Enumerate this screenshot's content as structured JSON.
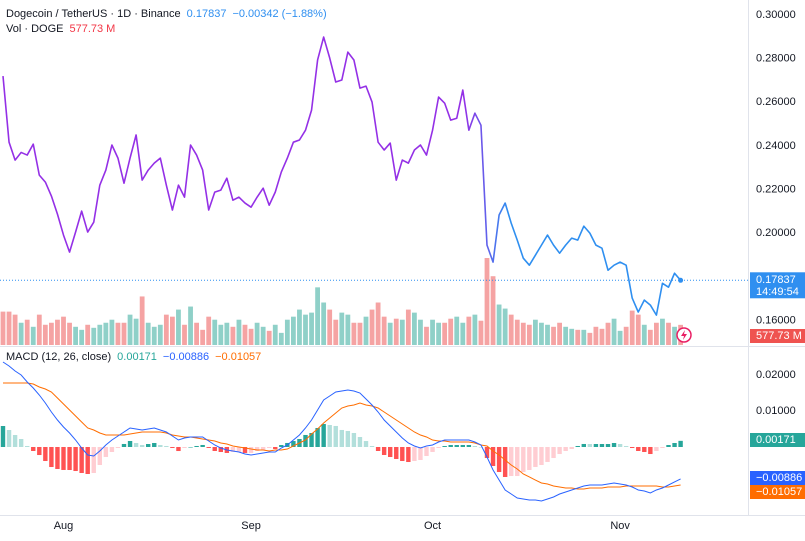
{
  "chart_data": [
    {
      "type": "line",
      "title": "Dogecoin / TetherUS · 1D · Binance",
      "change": "−0.00342 (−1.88%)",
      "countdown": "14:49:54",
      "color": [
        "#9430e6",
        "#2f8ff0"
      ],
      "grid": false,
      "ylim": [
        0.1487,
        0.3069
      ],
      "yticks": [
        {
          "value": 0.3,
          "label": "0.30000"
        },
        {
          "value": 0.28,
          "label": "0.28000"
        },
        {
          "value": 0.26,
          "label": "0.26000"
        },
        {
          "value": 0.24,
          "label": "0.24000"
        },
        {
          "value": 0.22,
          "label": "0.22000"
        },
        {
          "value": 0.2,
          "label": "0.20000"
        },
        {
          "value": 0.16,
          "label": "0.16000"
        }
      ],
      "categories": [
        null,
        null,
        null,
        null,
        null,
        null,
        null,
        null,
        null,
        null,
        "Aug",
        null,
        null,
        null,
        null,
        null,
        null,
        null,
        null,
        null,
        null,
        null,
        null,
        null,
        null,
        null,
        null,
        null,
        null,
        null,
        null,
        null,
        null,
        null,
        null,
        null,
        null,
        null,
        null,
        null,
        null,
        "Sep",
        null,
        null,
        null,
        null,
        null,
        null,
        null,
        null,
        null,
        null,
        null,
        null,
        null,
        null,
        null,
        null,
        null,
        null,
        null,
        null,
        null,
        null,
        null,
        null,
        null,
        null,
        null,
        null,
        null,
        "Oct",
        null,
        null,
        null,
        null,
        null,
        null,
        null,
        null,
        null,
        null,
        null,
        null,
        null,
        null,
        null,
        null,
        null,
        null,
        null,
        null,
        null,
        null,
        null,
        null,
        null,
        null,
        null,
        null,
        null,
        null,
        "Nov",
        null,
        null,
        null,
        null,
        null,
        null,
        null,
        null,
        null,
        null
      ],
      "values": [
        0.272,
        0.2417,
        0.2335,
        0.237,
        0.2358,
        0.2408,
        0.2266,
        0.2234,
        0.217,
        0.2087,
        0.1991,
        0.1913,
        0.2005,
        0.2101,
        0.2005,
        0.205,
        0.222,
        0.2289,
        0.2404,
        0.2344,
        0.2229,
        0.2344,
        0.245,
        0.2243,
        0.2289,
        0.2321,
        0.2344,
        0.222,
        0.2106,
        0.222,
        0.2165,
        0.2404,
        0.2358,
        0.2289,
        0.2106,
        0.2188,
        0.2197,
        0.2252,
        0.2151,
        0.2165,
        0.2138,
        0.2119,
        0.2165,
        0.2206,
        0.2128,
        0.2188,
        0.228,
        0.2344,
        0.2417,
        0.2427,
        0.2472,
        0.2564,
        0.2794,
        0.2899,
        0.2803,
        0.2693,
        0.2702,
        0.283,
        0.2794,
        0.2665,
        0.2674,
        0.2601,
        0.2417,
        0.2381,
        0.2413,
        0.2243,
        0.2335,
        0.2321,
        0.2381,
        0.2404,
        0.2358,
        0.2472,
        0.2624,
        0.2596,
        0.2518,
        0.2527,
        0.2656,
        0.2472,
        0.255,
        0.2495,
        0.1945,
        0.1867,
        0.2083,
        0.2138,
        0.2046,
        0.1968,
        0.1885,
        0.1853,
        0.1899,
        0.1945,
        0.1991,
        0.1945,
        0.1908,
        0.1945,
        0.1977,
        0.1968,
        0.2032,
        0.2,
        0.1945,
        0.1931,
        0.183,
        0.1853,
        0.1867,
        0.1853,
        0.1702,
        0.1638,
        0.1693,
        0.167,
        0.1624,
        0.177,
        0.1752,
        0.1816,
        0.17837
      ]
    },
    {
      "type": "bar",
      "title": "Vol · DOGE",
      "last_label": "577.73 M",
      "up_color": "#8fd0c8",
      "down_color": "#f5a3a3",
      "values": [
        957,
        957,
        870,
        638,
        725,
        522,
        870,
        580,
        638,
        725,
        812,
        638,
        522,
        435,
        580,
        493,
        580,
        638,
        725,
        638,
        638,
        870,
        754,
        1392,
        638,
        522,
        580,
        870,
        812,
        1015,
        580,
        1102,
        638,
        435,
        812,
        725,
        580,
        638,
        522,
        725,
        580,
        464,
        638,
        522,
        406,
        580,
        348,
        725,
        812,
        1015,
        870,
        928,
        1653,
        1218,
        1015,
        725,
        928,
        870,
        638,
        638,
        812,
        1015,
        1218,
        812,
        638,
        754,
        725,
        1015,
        928,
        725,
        522,
        725,
        638,
        638,
        754,
        812,
        638,
        812,
        870,
        696,
        2494,
        1972,
        1160,
        1044,
        870,
        725,
        638,
        580,
        725,
        638,
        580,
        522,
        638,
        522,
        464,
        435,
        435,
        348,
        522,
        464,
        638,
        754,
        406,
        522,
        986,
        870,
        580,
        435,
        638,
        754,
        638,
        522,
        577.73
      ]
    },
    {
      "type": "macd",
      "title": "MACD (12, 26, close)",
      "macd_label": "−0.00886",
      "signal_label": "−0.01057",
      "macd_color": "#2962ff",
      "signal_color": "#ff6d00",
      "hist_colors": {
        "up_strong": "#26a69a",
        "up_weak": "#b2dfdb",
        "down_strong": "#ff5252",
        "down_weak": "#ffcdd2"
      },
      "ylim": [
        -0.01889,
        0.0275
      ],
      "yticks": [
        {
          "value": 0.02,
          "label": "0.02000"
        },
        {
          "value": 0.01,
          "label": "0.01000"
        }
      ],
      "histogram": [
        0.00583,
        0.00472,
        0.00333,
        0.00222,
        0.00028,
        -0.00111,
        -0.00223,
        -0.00389,
        -0.00556,
        -0.00611,
        -0.00638,
        -0.00639,
        -0.00667,
        -0.00722,
        -0.0075,
        -0.00722,
        -0.005,
        -0.00277,
        -0.00139,
        -0.00027,
        0.00084,
        0.00167,
        0.00111,
        0.00055,
        0.00083,
        0.00111,
        0.00055,
        0.00028,
        -0.00027,
        -0.00112,
        -0.00028,
        0,
        0.00028,
        0.00056,
        -0.00027,
        -0.00111,
        -0.00139,
        -0.00166,
        -0.00139,
        -0.00139,
        -0.00166,
        -0.00166,
        -0.00111,
        -0.00084,
        -0.00028,
        -0.00056,
        0.00055,
        0.00112,
        0.00166,
        0.00222,
        0.00334,
        0.00389,
        0.00528,
        0.00639,
        0.00611,
        0.00584,
        0.00473,
        0.00444,
        0.00389,
        0.00278,
        0.00166,
        0.00028,
        -0.00111,
        -0.00222,
        -0.00278,
        -0.00333,
        -0.00389,
        -0.00417,
        -0.00389,
        -0.00361,
        -0.0025,
        -0.00138,
        -0.00028,
        0.00027,
        0.00055,
        0.00055,
        0.00055,
        0.00055,
        0.00028,
        0,
        -0.00306,
        -0.00528,
        -0.00695,
        -0.00833,
        -0.00806,
        -0.00806,
        -0.00694,
        -0.00639,
        -0.00555,
        -0.005,
        -0.00416,
        -0.00306,
        -0.00195,
        -0.00111,
        -0.00055,
        0.00028,
        0.00084,
        0.00083,
        0.00083,
        0.00083,
        0.00083,
        0.00111,
        0.00083,
        0.00027,
        -0.00028,
        -0.00111,
        -0.00139,
        -0.00195,
        -0.00111,
        -0.00028,
        0.00055,
        0.00111,
        0.00171
      ],
      "macd": [
        0.02361,
        0.0225,
        0.02111,
        0.02,
        0.01806,
        0.01639,
        0.01444,
        0.01222,
        0.00972,
        0.0075,
        0.00556,
        0.00389,
        0.00194,
        -0.00028,
        -0.00222,
        -0.0025,
        -0.00111,
        0.00056,
        0.00194,
        0.00306,
        0.00417,
        0.00528,
        0.005,
        0.00472,
        0.005,
        0.00528,
        0.00472,
        0.00417,
        0.00306,
        0.00194,
        0.0025,
        0.00278,
        0.00278,
        0.00278,
        0.00167,
        0.00056,
        -0.00028,
        -0.00083,
        -0.00111,
        -0.00139,
        -0.00194,
        -0.00222,
        -0.00194,
        -0.00167,
        -0.00139,
        -0.00139,
        -0.00028,
        0.00056,
        0.00194,
        0.00333,
        0.00528,
        0.0075,
        0.01028,
        0.01306,
        0.01417,
        0.01528,
        0.01556,
        0.01583,
        0.01556,
        0.015,
        0.01333,
        0.01167,
        0.00972,
        0.0075,
        0.00583,
        0.00417,
        0.0025,
        0.00111,
        0.00028,
        -0.00028,
        0.00028,
        0.00056,
        0.00139,
        0.00194,
        0.00194,
        0.00194,
        0.00194,
        0.00194,
        0.00139,
        0.00056,
        -0.00278,
        -0.00639,
        -0.00917,
        -0.01194,
        -0.01306,
        -0.01417,
        -0.01444,
        -0.01472,
        -0.01472,
        -0.015,
        -0.01444,
        -0.01389,
        -0.01306,
        -0.0125,
        -0.01194,
        -0.01139,
        -0.01083,
        -0.01056,
        -0.01056,
        -0.01056,
        -0.01028,
        -0.01,
        -0.01028,
        -0.01056,
        -0.01111,
        -0.01194,
        -0.01222,
        -0.01278,
        -0.01194,
        -0.01139,
        -0.01056,
        -0.00972,
        -0.00886
      ],
      "signal": [
        0.01778,
        0.01778,
        0.01778,
        0.01778,
        0.01778,
        0.0175,
        0.01667,
        0.01611,
        0.01528,
        0.01361,
        0.01194,
        0.01028,
        0.00861,
        0.00694,
        0.00528,
        0.00472,
        0.00389,
        0.00333,
        0.00333,
        0.00333,
        0.00333,
        0.00361,
        0.00389,
        0.00417,
        0.00417,
        0.00417,
        0.00417,
        0.00389,
        0.00333,
        0.00306,
        0.00278,
        0.00278,
        0.0025,
        0.00222,
        0.00194,
        0.00167,
        0.00111,
        0.00083,
        0.00028,
        0,
        -0.00028,
        -0.00056,
        -0.00083,
        -0.00083,
        -0.00111,
        -0.00083,
        -0.00083,
        -0.00056,
        0.00028,
        0.00111,
        0.00194,
        0.00361,
        0.005,
        0.00667,
        0.00806,
        0.00944,
        0.01083,
        0.01139,
        0.01167,
        0.01222,
        0.01167,
        0.01139,
        0.01083,
        0.00972,
        0.00861,
        0.0075,
        0.00639,
        0.00528,
        0.00417,
        0.00333,
        0.00278,
        0.00194,
        0.00167,
        0.00167,
        0.00139,
        0.00139,
        0.00139,
        0.00139,
        0.00111,
        0.00056,
        0.00028,
        -0.00111,
        -0.00222,
        -0.00361,
        -0.005,
        -0.00611,
        -0.0075,
        -0.00833,
        -0.00917,
        -0.01,
        -0.01028,
        -0.01083,
        -0.01111,
        -0.01139,
        -0.01139,
        -0.01167,
        -0.01167,
        -0.01139,
        -0.01139,
        -0.01139,
        -0.01111,
        -0.01111,
        -0.01111,
        -0.01083,
        -0.01083,
        -0.01083,
        -0.01083,
        -0.01083,
        -0.01083,
        -0.01111,
        -0.01111,
        -0.01083,
        -0.01057
      ]
    }
  ]
}
